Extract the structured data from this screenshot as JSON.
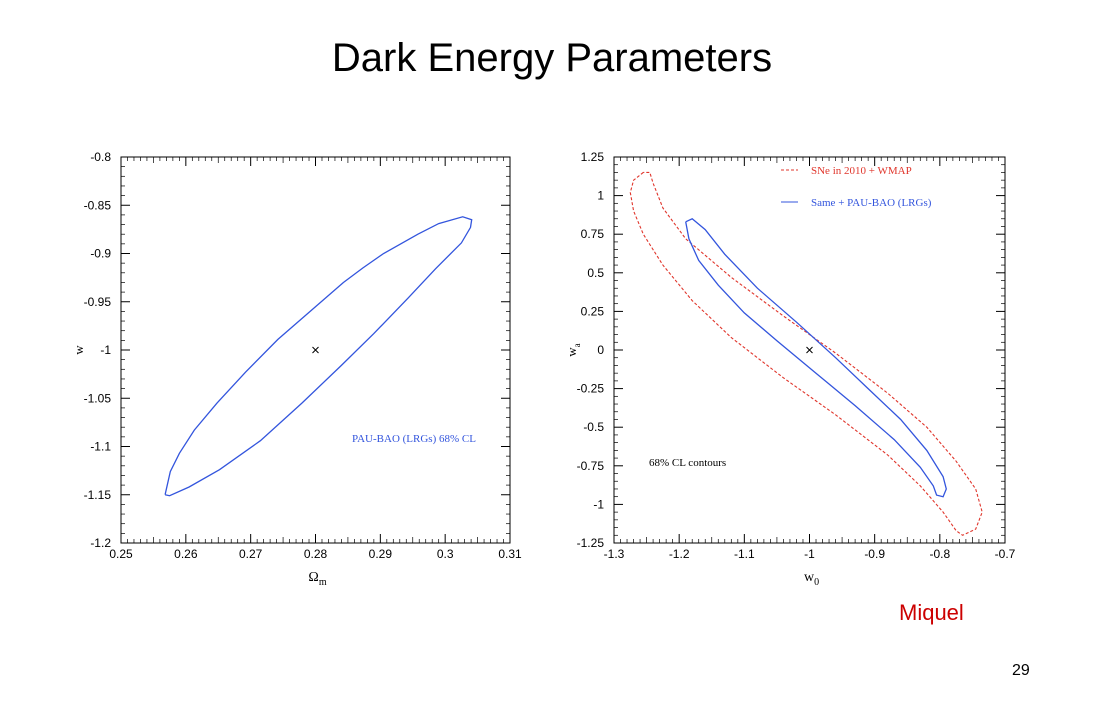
{
  "slide": {
    "title": "Dark Energy Parameters",
    "author": "Miquel",
    "page_number": "29"
  },
  "chart_data": [
    {
      "type": "contour",
      "xlabel": "Ωm",
      "ylabel": "w",
      "xlim": [
        0.25,
        0.31
      ],
      "ylim": [
        -1.2,
        -0.8
      ],
      "x_ticks": [
        "0.25",
        "0.26",
        "0.27",
        "0.28",
        "0.29",
        "0.3",
        "0.31"
      ],
      "y_ticks": [
        "-0.8",
        "-0.85",
        "-0.9",
        "-0.95",
        "-1",
        "-1.05",
        "-1.1",
        "-1.15",
        "-1.2"
      ],
      "fiducial": [
        0.28,
        -1.0
      ],
      "series": [
        {
          "name": "PAU-BAO (LRGs) 68% CL",
          "color": "#3355dd",
          "style": "solid",
          "points": [
            [
              0.2568,
              -1.15
            ],
            [
              0.2576,
              -1.126
            ],
            [
              0.259,
              -1.107
            ],
            [
              0.2613,
              -1.083
            ],
            [
              0.2648,
              -1.055
            ],
            [
              0.2692,
              -1.023
            ],
            [
              0.2742,
              -0.989
            ],
            [
              0.279,
              -0.961
            ],
            [
              0.2843,
              -0.93
            ],
            [
              0.2873,
              -0.915
            ],
            [
              0.2905,
              -0.9
            ],
            [
              0.2958,
              -0.88
            ],
            [
              0.299,
              -0.869
            ],
            [
              0.3027,
              -0.862
            ],
            [
              0.3041,
              -0.865
            ],
            [
              0.3039,
              -0.873
            ],
            [
              0.3025,
              -0.889
            ],
            [
              0.2985,
              -0.916
            ],
            [
              0.2943,
              -0.946
            ],
            [
              0.289,
              -0.983
            ],
            [
              0.284,
              -1.016
            ],
            [
              0.2779,
              -1.055
            ],
            [
              0.2715,
              -1.094
            ],
            [
              0.2652,
              -1.124
            ],
            [
              0.2605,
              -1.142
            ],
            [
              0.2575,
              -1.151
            ],
            [
              0.2568,
              -1.15
            ]
          ]
        }
      ],
      "annotations": []
    },
    {
      "type": "contour",
      "xlabel": "w0",
      "ylabel": "wa",
      "xlim": [
        -1.3,
        -0.7
      ],
      "ylim": [
        -1.25,
        1.25
      ],
      "x_ticks": [
        "-1.3",
        "-1.2",
        "-1.1",
        "-1",
        "-0.9",
        "-0.8",
        "-0.7"
      ],
      "y_ticks": [
        "1.25",
        "1",
        "0.75",
        "0.5",
        "0.25",
        "0",
        "-0.25",
        "-0.5",
        "-0.75",
        "-1",
        "-1.25"
      ],
      "fiducial": [
        -1.0,
        0.0
      ],
      "series": [
        {
          "name": "SNe in 2010 + WMAP",
          "color": "#e0352b",
          "style": "dashed",
          "points": [
            [
              -1.255,
              1.15
            ],
            [
              -1.27,
              1.1
            ],
            [
              -1.275,
              1.02
            ],
            [
              -1.27,
              0.9
            ],
            [
              -1.255,
              0.75
            ],
            [
              -1.225,
              0.55
            ],
            [
              -1.18,
              0.32
            ],
            [
              -1.12,
              0.08
            ],
            [
              -1.04,
              -0.18
            ],
            [
              -0.96,
              -0.42
            ],
            [
              -0.88,
              -0.68
            ],
            [
              -0.83,
              -0.88
            ],
            [
              -0.795,
              -1.05
            ],
            [
              -0.775,
              -1.17
            ],
            [
              -0.765,
              -1.2
            ],
            [
              -0.745,
              -1.16
            ],
            [
              -0.735,
              -1.05
            ],
            [
              -0.745,
              -0.9
            ],
            [
              -0.775,
              -0.72
            ],
            [
              -0.82,
              -0.5
            ],
            [
              -0.88,
              -0.28
            ],
            [
              -0.96,
              -0.02
            ],
            [
              -1.04,
              0.22
            ],
            [
              -1.12,
              0.47
            ],
            [
              -1.19,
              0.72
            ],
            [
              -1.225,
              0.92
            ],
            [
              -1.24,
              1.08
            ],
            [
              -1.245,
              1.15
            ],
            [
              -1.255,
              1.15
            ]
          ]
        },
        {
          "name": "Same + PAU-BAO (LRGs)",
          "color": "#3355dd",
          "style": "solid",
          "points": [
            [
              -1.19,
              0.83
            ],
            [
              -1.185,
              0.72
            ],
            [
              -1.17,
              0.58
            ],
            [
              -1.14,
              0.42
            ],
            [
              -1.1,
              0.24
            ],
            [
              -1.05,
              0.06
            ],
            [
              -0.99,
              -0.15
            ],
            [
              -0.93,
              -0.36
            ],
            [
              -0.87,
              -0.58
            ],
            [
              -0.83,
              -0.76
            ],
            [
              -0.81,
              -0.88
            ],
            [
              -0.805,
              -0.94
            ],
            [
              -0.795,
              -0.95
            ],
            [
              -0.79,
              -0.9
            ],
            [
              -0.795,
              -0.82
            ],
            [
              -0.82,
              -0.65
            ],
            [
              -0.86,
              -0.45
            ],
            [
              -0.91,
              -0.25
            ],
            [
              -0.96,
              -0.05
            ],
            [
              -1.02,
              0.18
            ],
            [
              -1.08,
              0.4
            ],
            [
              -1.13,
              0.62
            ],
            [
              -1.16,
              0.78
            ],
            [
              -1.18,
              0.85
            ],
            [
              -1.19,
              0.83
            ]
          ]
        }
      ],
      "annotations": [
        "68% CL contours"
      ]
    }
  ]
}
